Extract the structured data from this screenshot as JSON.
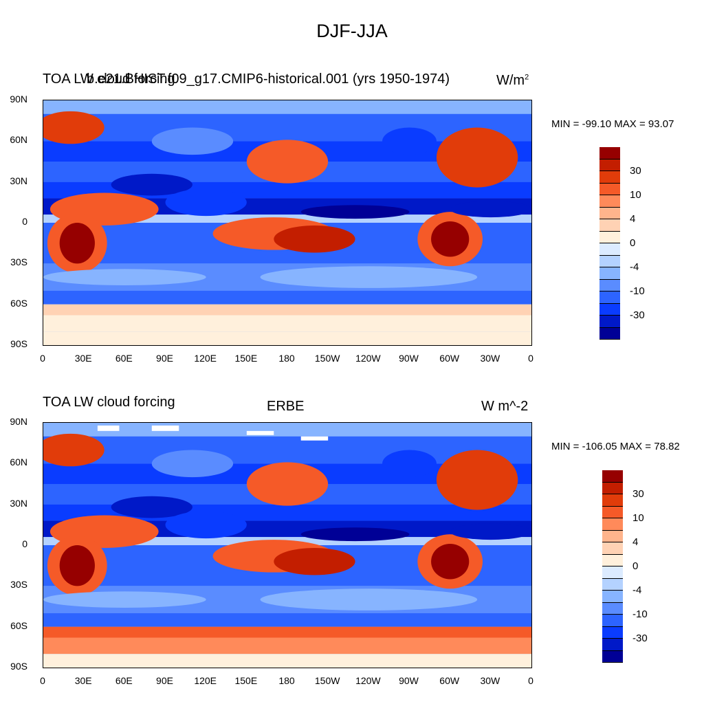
{
  "title": "DJF-JJA",
  "colors": [
    "#000096",
    "#0019c8",
    "#0a3cff",
    "#2d64ff",
    "#5a8cff",
    "#87b4ff",
    "#b4d2ff",
    "#dcebff",
    "#fff0dc",
    "#ffd2b4",
    "#ffb48c",
    "#ff8a5a",
    "#f55a28",
    "#e13c0a",
    "#c31e00",
    "#960000"
  ],
  "panels": [
    {
      "id": "model",
      "left_title_a": "TOA LW cloud forcing",
      "left_title_b": "b.e21.BHIST.f09_g17.CMIP6-historical.001 (yrs 1950-1974)",
      "units_base": "W/m",
      "units_sup": "2",
      "center_title": "",
      "stats": "MIN = -99.10 MAX =  93.07"
    },
    {
      "id": "obs",
      "left_title_a": "TOA LW cloud forcing",
      "left_title_b": "",
      "units_base": "W m^-2",
      "units_sup": "",
      "center_title": "ERBE",
      "stats": "MIN = -106.05 MAX =  78.82"
    }
  ],
  "lat_ticks": [
    "90N",
    "60N",
    "30N",
    "0",
    "30S",
    "60S",
    "90S"
  ],
  "lon_ticks": [
    "0",
    "30E",
    "60E",
    "90E",
    "120E",
    "150E",
    "180",
    "150W",
    "120W",
    "90W",
    "60W",
    "30W",
    "0"
  ],
  "colorbar_labels": [
    "30",
    "10",
    "4",
    "0",
    "-4",
    "-10",
    "-30"
  ]
}
